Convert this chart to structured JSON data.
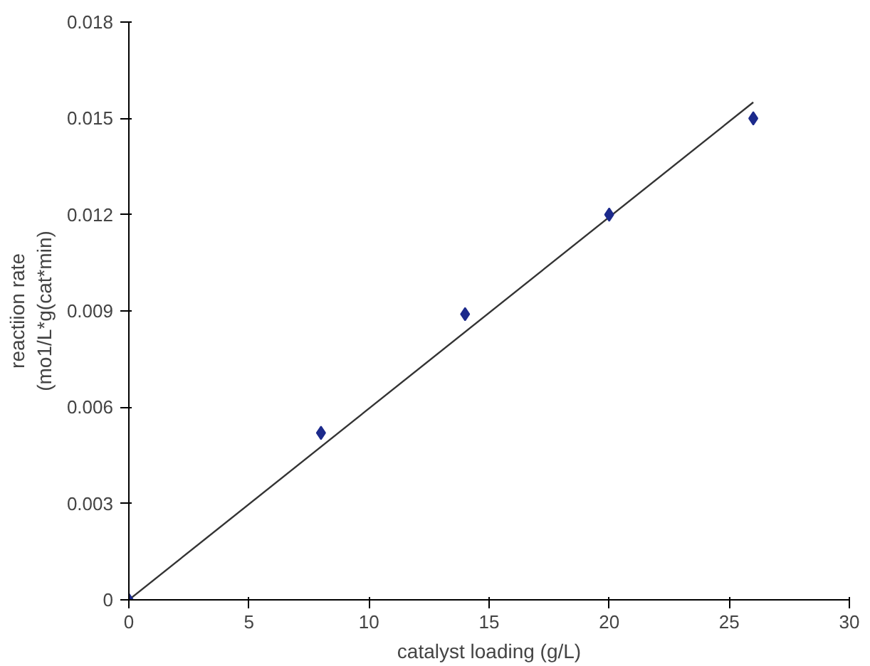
{
  "chart_data": {
    "type": "scatter",
    "xlabel": "catalyst loading (g/L)",
    "ylabel": "reactiion rate\n(mo1/L*g(cat*min)",
    "xlim": [
      0,
      30
    ],
    "ylim": [
      0,
      0.018
    ],
    "xticks": [
      0,
      5,
      10,
      15,
      20,
      25,
      30
    ],
    "yticks": [
      0,
      0.003,
      0.006,
      0.009,
      0.012,
      0.015,
      0.018
    ],
    "grid": false,
    "marker": "diamond",
    "series": [
      {
        "color": "#1c2a8c",
        "x": [
          0,
          8,
          14,
          20,
          26
        ],
        "values": [
          0,
          0.0052,
          0.0089,
          0.012,
          0.015
        ]
      },
      {
        "type": "line",
        "color": "#333333",
        "line_style": "solid",
        "marker": "none",
        "x": [
          0,
          26
        ],
        "values": [
          0,
          0.0155
        ]
      }
    ]
  }
}
